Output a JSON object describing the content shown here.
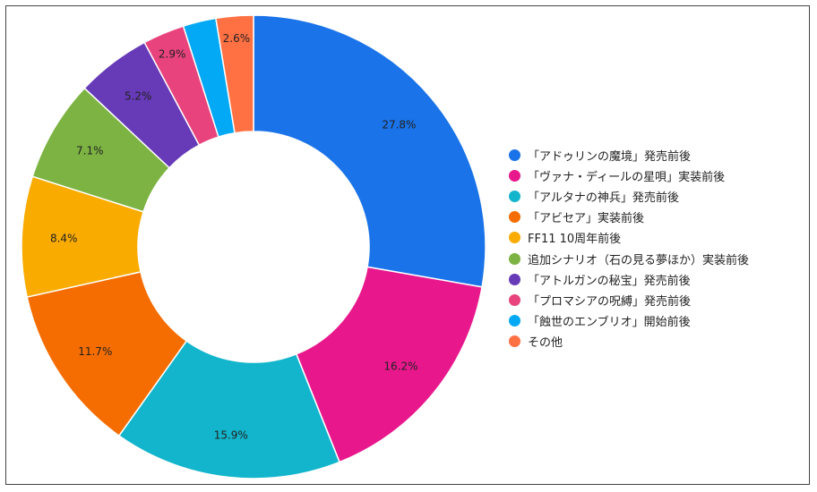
{
  "chart_data": {
    "type": "pie",
    "donut": true,
    "title": "",
    "legend_position": "right",
    "slices": [
      {
        "name": "「アドゥリンの魔境」発売前後",
        "value": 27.8,
        "label": "27.8%",
        "color": "#1a73e8"
      },
      {
        "name": "「ヴァナ・ディールの星唄」実装前後",
        "value": 16.2,
        "label": "16.2%",
        "color": "#e8188c"
      },
      {
        "name": "「アルタナの神兵」発売前後",
        "value": 15.9,
        "label": "15.9%",
        "color": "#12b5cb"
      },
      {
        "name": "「アビセア」実装前後",
        "value": 11.7,
        "label": "11.7%",
        "color": "#f56d00"
      },
      {
        "name": "FF11 10周年前後",
        "value": 8.4,
        "label": "8.4%",
        "color": "#f9ab00"
      },
      {
        "name": "追加シナリオ（石の見る夢ほか）実装前後",
        "value": 7.1,
        "label": "7.1%",
        "color": "#7cb342"
      },
      {
        "name": "「アトルガンの秘宝」発売前後",
        "value": 5.2,
        "label": "5.2%",
        "color": "#673ab7"
      },
      {
        "name": "「プロマシアの呪縛」発売前後",
        "value": 2.9,
        "label": "2.9%",
        "color": "#e8437c"
      },
      {
        "name": "「蝕世のエンブリオ」開始前後",
        "value": 2.3,
        "label": "",
        "color": "#03a9f4"
      },
      {
        "name": "その他",
        "value": 2.6,
        "label": "2.6%",
        "color": "#ff7043"
      }
    ]
  }
}
